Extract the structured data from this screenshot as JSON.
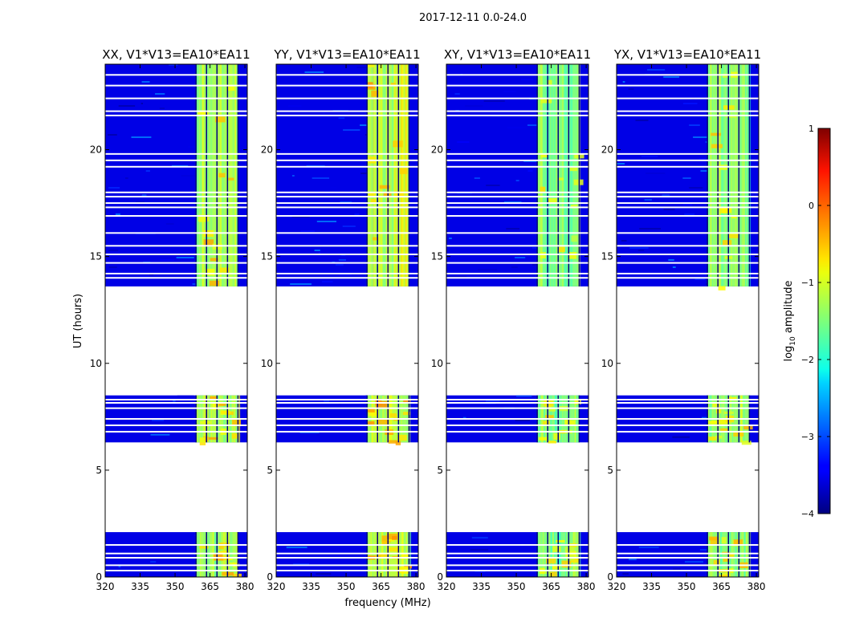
{
  "chart_data": {
    "type": "heatmap",
    "title": "2017-12-11 0.0-24.0",
    "xlabel": "frequency (MHz)",
    "ylabel": "UT (hours)",
    "xlim": [
      320,
      381
    ],
    "ylim": [
      0,
      24
    ],
    "x_ticks": [
      320,
      335,
      350,
      365,
      380
    ],
    "y_ticks": [
      0,
      5,
      10,
      15,
      20
    ],
    "data_time_ranges": [
      [
        0.0,
        2.1
      ],
      [
        6.3,
        8.5
      ],
      [
        13.6,
        24.0
      ]
    ],
    "rfi_band_mhz": [
      359,
      377
    ],
    "rfi_subband_edges_mhz": [
      359,
      363.5,
      368,
      372.5,
      377
    ],
    "flagged_times": [
      0.3,
      0.55,
      0.9,
      1.1,
      1.5,
      6.8,
      7.1,
      7.4,
      7.9,
      8.15,
      8.3,
      14.0,
      14.2,
      14.7,
      15.1,
      15.5,
      16.1,
      16.9,
      17.3,
      17.5,
      17.8,
      18.0,
      19.2,
      19.5,
      19.8,
      21.6,
      21.8,
      22.4,
      23.0,
      23.5
    ],
    "panels": [
      {
        "title": "XX, V1*V13=EA10*EA11",
        "rfi_level": -1.3
      },
      {
        "title": "YY, V1*V13=EA10*EA11",
        "rfi_level": -1.2
      },
      {
        "title": "XY, V1*V13=EA10*EA11",
        "rfi_level": -1.5
      },
      {
        "title": "YX, V1*V13=EA10*EA11",
        "rfi_level": -1.4
      }
    ],
    "background_level": -3.5,
    "colorbar": {
      "label_prefix": "log",
      "label_subscript": "10",
      "label_suffix": " amplitude",
      "colormap": "jet",
      "vmin": -4,
      "vmax": 1,
      "ticks": [
        1,
        0,
        -1,
        -2,
        -3,
        -4
      ]
    }
  }
}
